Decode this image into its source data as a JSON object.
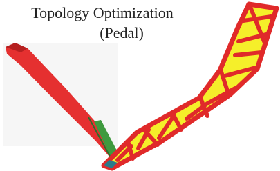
{
  "title": {
    "line1": "Topology Optimization",
    "line2": "(Pedal)"
  }
}
